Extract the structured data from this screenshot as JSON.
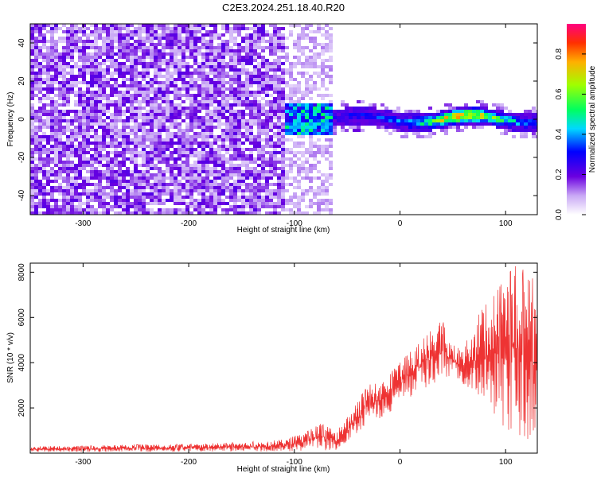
{
  "chart_data": [
    {
      "type": "heatmap",
      "title": "C2E3.2024.251.18.40.R20",
      "xlabel": "Height of straight line (km)",
      "ylabel": "Frequency (Hz)",
      "xlim": [
        -350,
        130
      ],
      "ylim": [
        -50,
        50
      ],
      "xticks": [
        "-300",
        "-200",
        "-100",
        "0",
        "100"
      ],
      "yticks": [
        "-40",
        "-20",
        "0",
        "20",
        "40"
      ],
      "colorbar": {
        "label": "Normalized spectral amplitude",
        "range": [
          0,
          0.95
        ],
        "ticks": [
          "0.0",
          "0.2",
          "0.4",
          "0.6",
          "0.8"
        ]
      },
      "description": "Broadband noise (purple, ~0.1-0.2) for heights below about -110 km; above -110 km a narrow band centered near 0 Hz with amplitude rising to ~0.9 near 50-70 km"
    },
    {
      "type": "line",
      "xlabel": "Height of straight line (km)",
      "ylabel": "SNR (10 * v/v)",
      "xlim": [
        -350,
        130
      ],
      "ylim": [
        0,
        8400
      ],
      "xticks": [
        "-300",
        "-200",
        "-100",
        "0",
        "100"
      ],
      "yticks": [
        "2000",
        "4000",
        "6000",
        "8000"
      ],
      "color": "#ee3333",
      "envelope": [
        {
          "x": -350,
          "low": 50,
          "high": 300
        },
        {
          "x": -300,
          "low": 50,
          "high": 320
        },
        {
          "x": -250,
          "low": 60,
          "high": 380
        },
        {
          "x": -200,
          "low": 60,
          "high": 400
        },
        {
          "x": -150,
          "low": 60,
          "high": 480
        },
        {
          "x": -110,
          "low": 80,
          "high": 600
        },
        {
          "x": -90,
          "low": 100,
          "high": 900
        },
        {
          "x": -75,
          "low": 120,
          "high": 1300
        },
        {
          "x": -60,
          "low": 150,
          "high": 1000
        },
        {
          "x": -50,
          "low": 400,
          "high": 1600
        },
        {
          "x": -40,
          "low": 800,
          "high": 2400
        },
        {
          "x": -30,
          "low": 1200,
          "high": 3000
        },
        {
          "x": -20,
          "low": 1500,
          "high": 3200
        },
        {
          "x": -10,
          "low": 1800,
          "high": 3500
        },
        {
          "x": 0,
          "low": 2200,
          "high": 4000
        },
        {
          "x": 10,
          "low": 2500,
          "high": 4500
        },
        {
          "x": 20,
          "low": 2800,
          "high": 5000
        },
        {
          "x": 30,
          "low": 3000,
          "high": 5500
        },
        {
          "x": 40,
          "low": 3200,
          "high": 5900
        },
        {
          "x": 50,
          "low": 3500,
          "high": 4800
        },
        {
          "x": 60,
          "low": 3000,
          "high": 4600
        },
        {
          "x": 70,
          "low": 2500,
          "high": 5800
        },
        {
          "x": 80,
          "low": 2000,
          "high": 6500
        },
        {
          "x": 90,
          "low": 1500,
          "high": 7000
        },
        {
          "x": 100,
          "low": 1000,
          "high": 7800
        },
        {
          "x": 110,
          "low": 800,
          "high": 8300
        },
        {
          "x": 120,
          "low": 600,
          "high": 8000
        },
        {
          "x": 130,
          "low": 500,
          "high": 7500
        }
      ]
    }
  ]
}
